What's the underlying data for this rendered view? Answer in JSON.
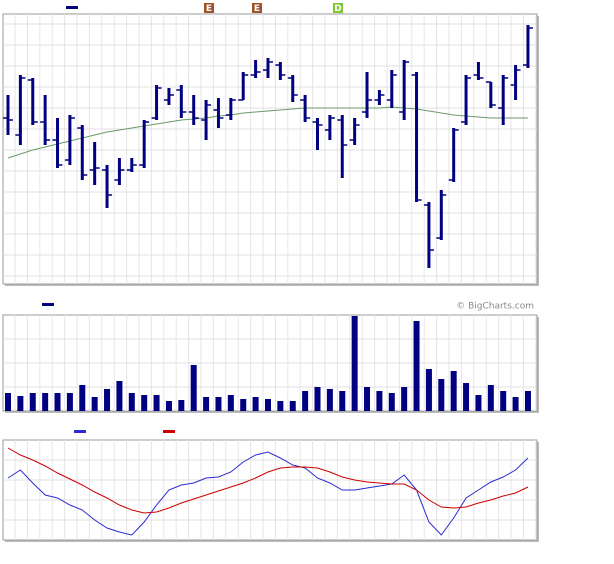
{
  "chart_data": [
    {
      "type": "ohlc",
      "color": "#000080",
      "ylim": [
        0,
        270
      ],
      "yticks": [
        8,
        29,
        50,
        71,
        92,
        113,
        134,
        155,
        176,
        197,
        218,
        239,
        260
      ],
      "grid": true,
      "events": [
        {
          "label": "E",
          "color": "#a0522d"
        },
        {
          "label": "E",
          "color": "#a0522d"
        },
        {
          "label": "D",
          "color": "#7ec832"
        }
      ],
      "high": [
        189,
        209,
        206,
        189,
        166,
        169,
        159,
        142,
        119,
        126,
        126,
        164,
        199,
        196,
        199,
        189,
        184,
        186,
        186,
        212,
        224,
        226,
        222,
        209,
        189,
        166,
        169,
        169,
        166,
        212,
        194,
        214,
        224,
        212,
        82,
        94,
        156,
        209,
        222,
        202,
        209,
        219,
        259
      ],
      "low": [
        149,
        139,
        159,
        139,
        116,
        119,
        104,
        99,
        76,
        99,
        112,
        116,
        164,
        179,
        166,
        159,
        144,
        156,
        164,
        184,
        206,
        206,
        204,
        182,
        162,
        134,
        144,
        106,
        139,
        166,
        179,
        176,
        164,
        82,
        16,
        44,
        102,
        159,
        204,
        176,
        159,
        184,
        216
      ],
      "open": [
        166,
        149,
        204,
        162,
        144,
        124,
        156,
        114,
        114,
        104,
        114,
        119,
        166,
        184,
        194,
        172,
        164,
        174,
        169,
        184,
        209,
        214,
        219,
        206,
        184,
        162,
        154,
        164,
        144,
        172,
        184,
        184,
        172,
        209,
        79,
        46,
        104,
        162,
        209,
        202,
        176,
        199,
        219
      ],
      "close": [
        164,
        206,
        162,
        144,
        119,
        166,
        109,
        116,
        89,
        114,
        119,
        162,
        196,
        189,
        172,
        166,
        179,
        166,
        184,
        209,
        212,
        222,
        209,
        189,
        166,
        159,
        166,
        139,
        159,
        184,
        189,
        209,
        222,
        84,
        34,
        89,
        154,
        206,
        206,
        179,
        206,
        214,
        256
      ],
      "series": [
        {
          "color": "#6a9a6a",
          "values": [
            126,
            130,
            134,
            137,
            140,
            143,
            146,
            149,
            152,
            154,
            156,
            158,
            160,
            162,
            164,
            165,
            166,
            168,
            169,
            171,
            172,
            173,
            174,
            175,
            176,
            176,
            176,
            176,
            176,
            176,
            176,
            177,
            176,
            175,
            173,
            171,
            169,
            168,
            167,
            166,
            166,
            166,
            166
          ]
        }
      ]
    },
    {
      "type": "bar",
      "color": "#000080",
      "ylim": [
        0,
        96
      ],
      "yticks": [
        24,
        48,
        72
      ],
      "grid": true,
      "credit": "© BigCharts.com",
      "values": [
        18,
        15,
        18,
        18,
        18,
        18,
        26,
        14,
        22,
        30,
        18,
        16,
        16,
        10,
        11,
        46,
        14,
        14,
        16,
        12,
        14,
        12,
        10,
        10,
        20,
        24,
        22,
        20,
        95,
        24,
        20,
        18,
        24,
        90,
        42,
        32,
        40,
        28,
        16,
        26,
        20,
        14,
        20
      ]
    },
    {
      "type": "line",
      "ylim": [
        0,
        100
      ],
      "yticks": [
        20,
        40,
        60,
        80
      ],
      "grid": true,
      "series": [
        {
          "color": "#2b2bd0",
          "values": [
            62,
            70,
            57,
            45,
            42,
            35,
            30,
            20,
            12,
            8,
            5,
            18,
            35,
            50,
            55,
            57,
            62,
            63,
            68,
            78,
            85,
            88,
            82,
            75,
            72,
            62,
            57,
            50,
            50,
            52,
            54,
            56,
            65,
            50,
            18,
            5,
            22,
            42,
            50,
            58,
            63,
            70,
            82
          ]
        },
        {
          "color": "#cc0000",
          "values": [
            92,
            85,
            80,
            74,
            67,
            61,
            55,
            48,
            42,
            35,
            30,
            27,
            28,
            32,
            37,
            41,
            45,
            49,
            53,
            57,
            62,
            68,
            72,
            73,
            73,
            72,
            68,
            63,
            60,
            58,
            57,
            56,
            56,
            50,
            40,
            33,
            32,
            33,
            37,
            40,
            44,
            47,
            53
          ]
        }
      ]
    }
  ]
}
